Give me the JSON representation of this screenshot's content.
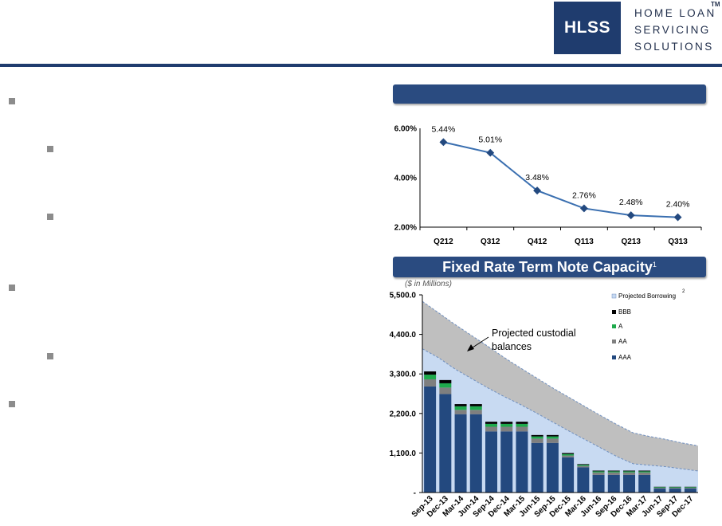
{
  "header": {
    "logo_mark": "HLSS",
    "logo_lines": [
      "HOME LOAN",
      "SERVICING",
      "SOLUTIONS"
    ],
    "trademark": "TM"
  },
  "top_chart": {
    "title": "",
    "categories": [
      "Q212",
      "Q312",
      "Q412",
      "Q113",
      "Q213",
      "Q313"
    ],
    "values": [
      5.44,
      5.01,
      3.48,
      2.76,
      2.48,
      2.4
    ],
    "data_labels": [
      "5.44%",
      "5.01%",
      "3.48%",
      "2.76%",
      "2.48%",
      "2.40%"
    ],
    "y_ticks": [
      "6.00%",
      "4.00%",
      "2.00%"
    ]
  },
  "bottom_chart": {
    "title": "Fixed Rate Term Note Capacity",
    "title_footnote": "1",
    "unit_note": "($ in Millions)",
    "y_ticks": [
      "5,500.0",
      "4,400.0",
      "3,300.0",
      "2,200.0",
      "1,100.0",
      "-"
    ],
    "x_labels": [
      "Sep-13",
      "Dec-13",
      "Mar-14",
      "Jun-14",
      "Sep-14",
      "Dec-14",
      "Mar-15",
      "Jun-15",
      "Sep-15",
      "Dec-15",
      "Mar-16",
      "Jun-16",
      "Sep-16",
      "Dec-16",
      "Mar-17",
      "Jun-17",
      "Sep-17",
      "Dec-17"
    ],
    "annotation": [
      "Projected custodial",
      "balances"
    ],
    "legend": {
      "projected": "Projected Borrowing",
      "projected_footnote": "2",
      "bbb": "BBB",
      "a": "A",
      "aa": "AA",
      "aaa": "AAA"
    }
  },
  "colors": {
    "navy": "#1f3c6e",
    "banner": "#2a4b80",
    "line": "#3a6fb0",
    "aaa": "#23497f",
    "aa": "#7f7f7f",
    "a": "#1eaa4c",
    "bbb": "#000000",
    "custodial_band": "#bfbfbf",
    "projected_area": "#c8daf2"
  },
  "chart_data": [
    {
      "type": "line",
      "title": "",
      "categories": [
        "Q212",
        "Q312",
        "Q412",
        "Q113",
        "Q213",
        "Q313"
      ],
      "values": [
        5.44,
        5.01,
        3.48,
        2.76,
        2.48,
        2.4
      ],
      "ylim": [
        2.0,
        6.0
      ],
      "xlabel": "",
      "ylabel": ""
    },
    {
      "type": "bar",
      "title": "Fixed Rate Term Note Capacity",
      "categories": [
        "Sep-13",
        "Dec-13",
        "Mar-14",
        "Jun-14",
        "Sep-14",
        "Dec-14",
        "Mar-15",
        "Jun-15",
        "Sep-15",
        "Dec-15",
        "Mar-16",
        "Jun-16",
        "Sep-16",
        "Dec-16",
        "Mar-17",
        "Jun-17",
        "Sep-17",
        "Dec-17"
      ],
      "ylim": [
        0,
        5500
      ],
      "ylabel": "($ in Millions)",
      "stacked": true,
      "series": [
        {
          "name": "AAA",
          "values": [
            2950,
            2740,
            2180,
            2180,
            1700,
            1700,
            1700,
            1380,
            1380,
            980,
            700,
            490,
            490,
            490,
            490,
            110,
            110,
            110
          ]
        },
        {
          "name": "AA",
          "values": [
            200,
            180,
            120,
            120,
            130,
            130,
            130,
            120,
            120,
            50,
            40,
            70,
            70,
            70,
            70,
            20,
            20,
            20
          ]
        },
        {
          "name": "A",
          "values": [
            130,
            120,
            100,
            100,
            80,
            80,
            80,
            60,
            60,
            40,
            30,
            30,
            30,
            30,
            30,
            20,
            20,
            20
          ]
        },
        {
          "name": "BBB",
          "values": [
            90,
            90,
            60,
            60,
            60,
            60,
            60,
            40,
            40,
            30,
            20,
            20,
            20,
            20,
            20,
            10,
            10,
            10
          ]
        }
      ],
      "areas": [
        {
          "name": "Projected custodial balances",
          "lower": [
            4000,
            3750,
            3440,
            3180,
            2920,
            2680,
            2460,
            2220,
            1970,
            1720,
            1480,
            1240,
            1000,
            800,
            760,
            720,
            660,
            600
          ],
          "upper": [
            5320,
            5000,
            4680,
            4380,
            4080,
            3770,
            3480,
            3200,
            2920,
            2660,
            2400,
            2140,
            1890,
            1660,
            1560,
            1480,
            1380,
            1300
          ]
        },
        {
          "name": "Projected Borrowing",
          "values": [
            4000,
            3750,
            3440,
            3180,
            2920,
            2680,
            2460,
            2220,
            1970,
            1720,
            1480,
            1240,
            1000,
            800,
            760,
            720,
            660,
            600
          ]
        }
      ]
    }
  ]
}
